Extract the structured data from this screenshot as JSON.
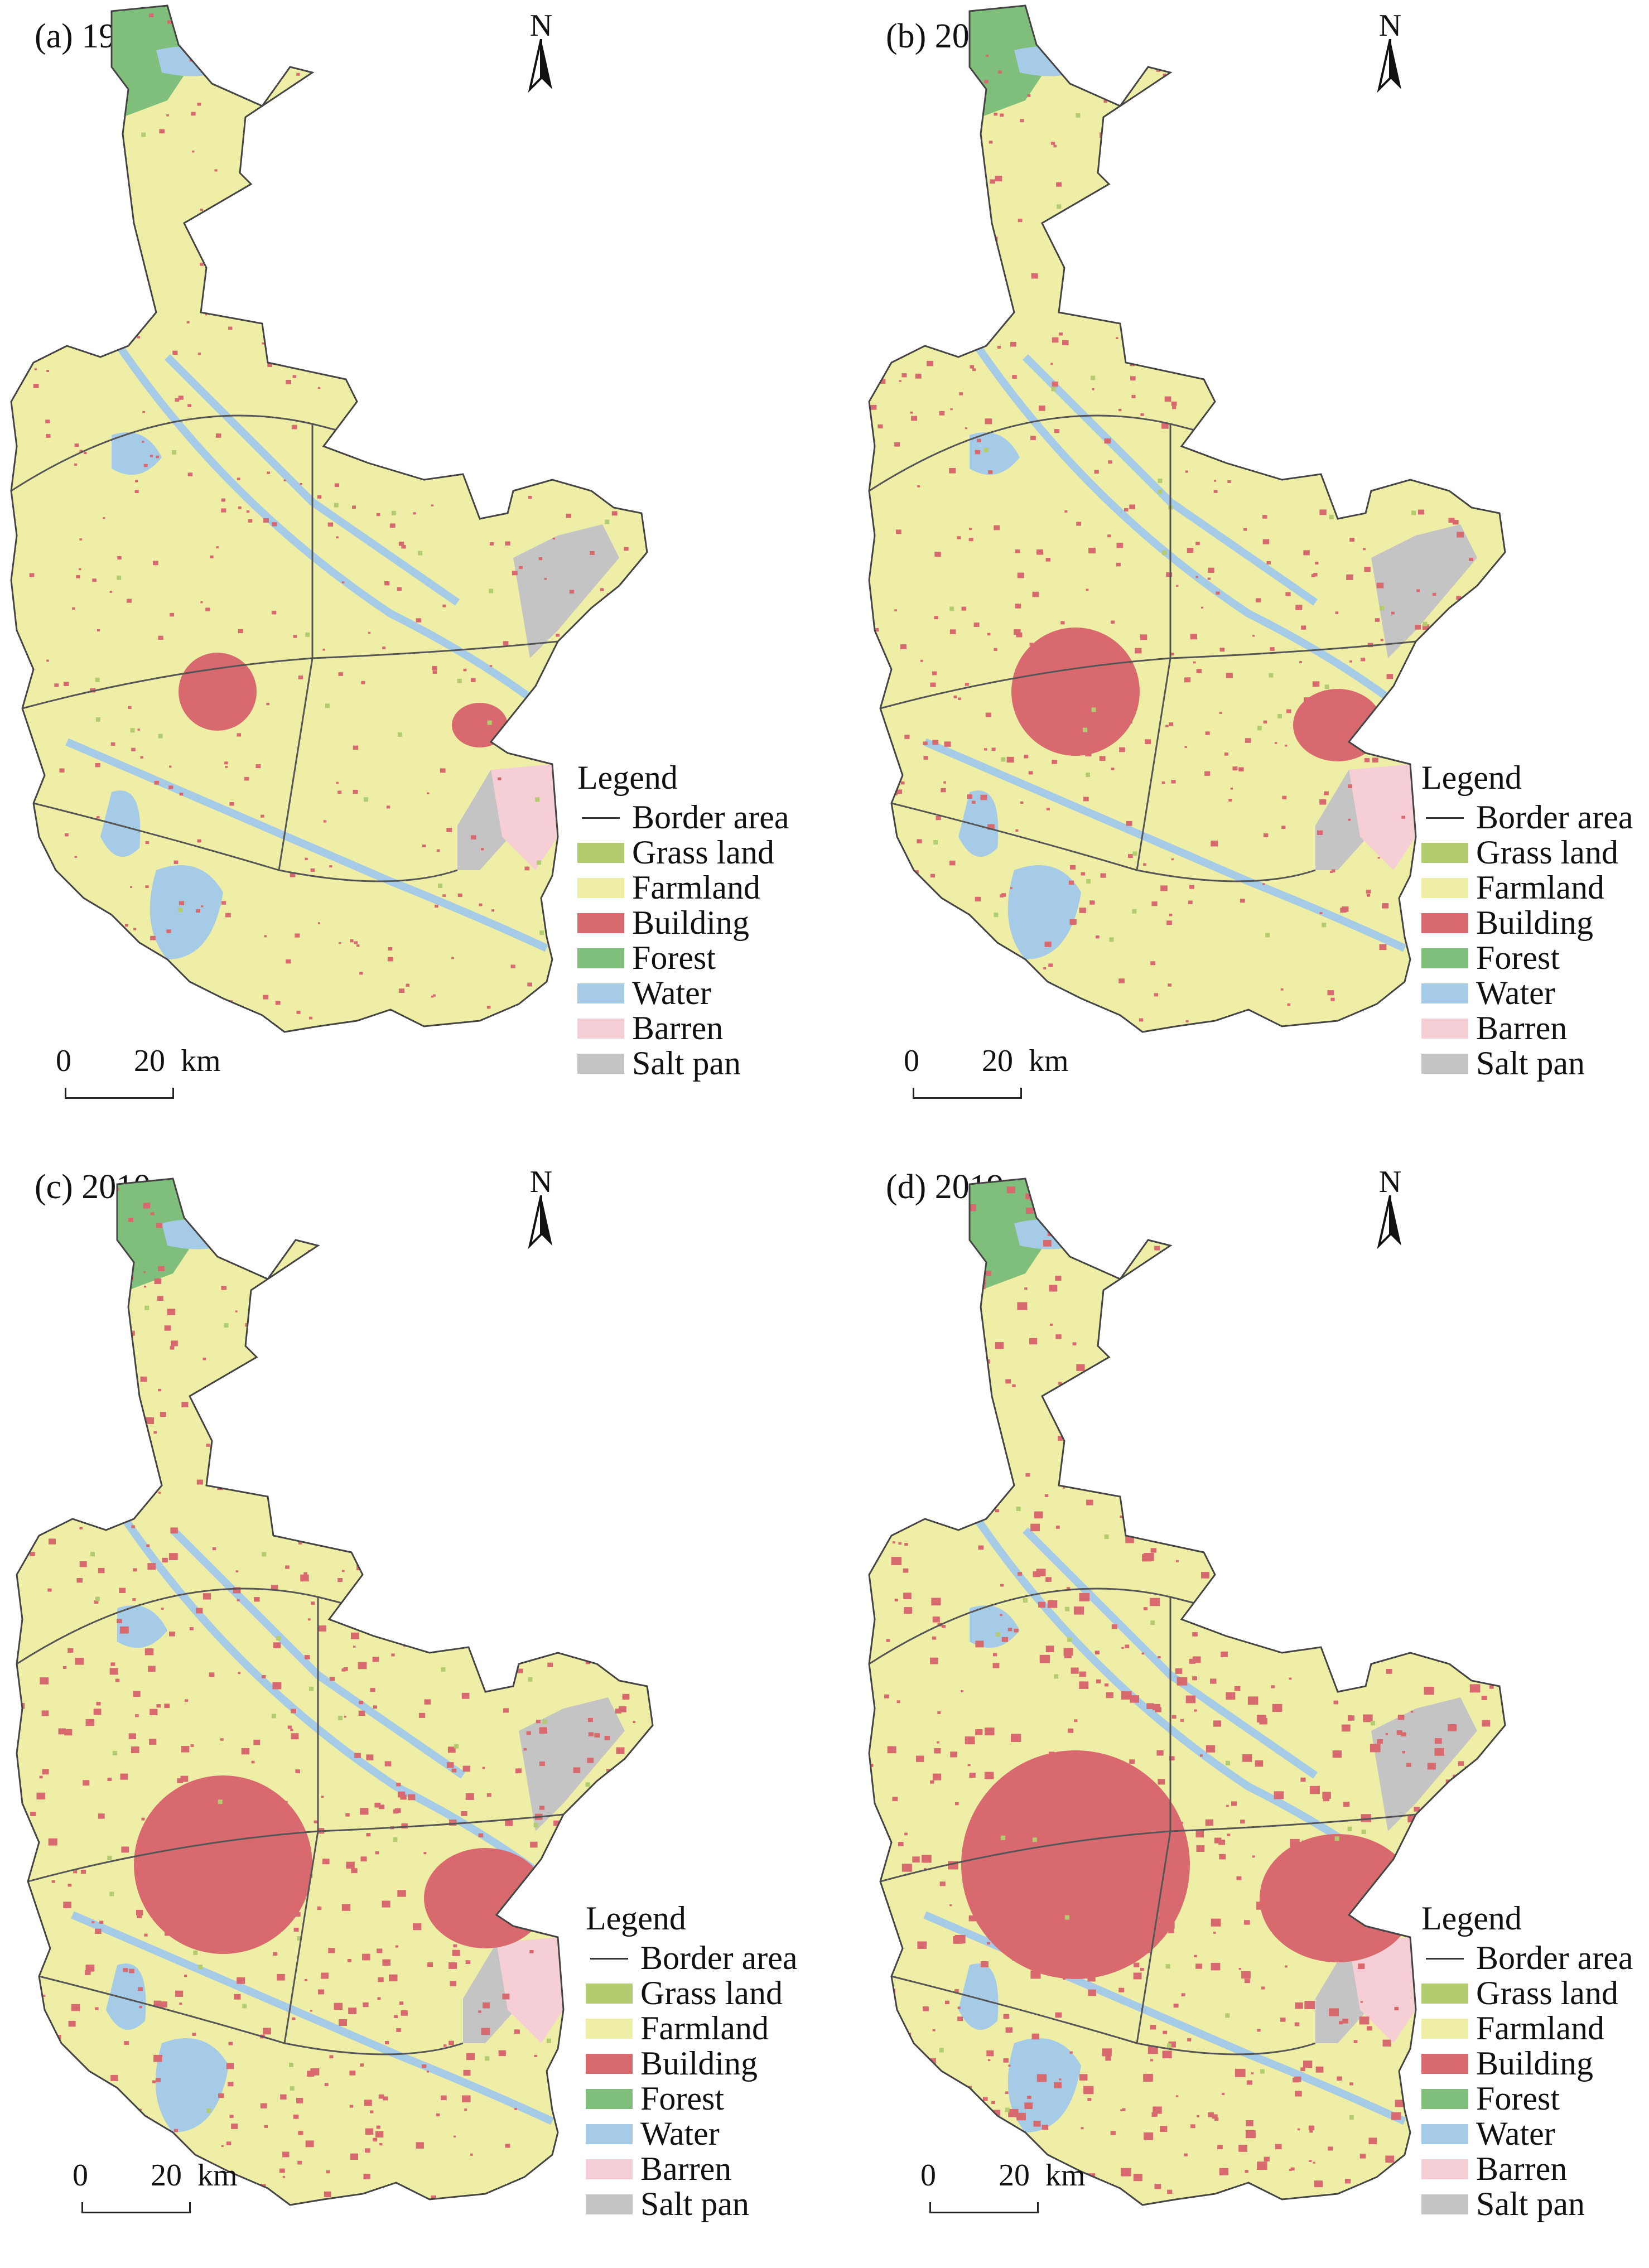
{
  "panels": [
    {
      "label": "(a) 1980",
      "key": "a"
    },
    {
      "label": "(b) 2000",
      "key": "b"
    },
    {
      "label": "(c) 2010",
      "key": "c"
    },
    {
      "label": "(d) 2019",
      "key": "d"
    }
  ],
  "north_label": "N",
  "legend": {
    "title": "Legend",
    "items": [
      {
        "label": "Border area",
        "kind": "line",
        "color": "#333333"
      },
      {
        "label": "Grass land",
        "kind": "fill",
        "color": "#b3cc70"
      },
      {
        "label": "Farmland",
        "kind": "fill",
        "color": "#eeeea6"
      },
      {
        "label": "Building",
        "kind": "fill",
        "color": "#d86a6f"
      },
      {
        "label": "Forest",
        "kind": "fill",
        "color": "#7fbf7b"
      },
      {
        "label": "Water",
        "kind": "fill",
        "color": "#a6cbe6"
      },
      {
        "label": "Barren",
        "kind": "fill",
        "color": "#f5cfd5"
      },
      {
        "label": "Salt pan",
        "kind": "fill",
        "color": "#c4c4c4"
      }
    ]
  },
  "scale_bar": {
    "start": "0",
    "end": "20",
    "unit": "km"
  }
}
